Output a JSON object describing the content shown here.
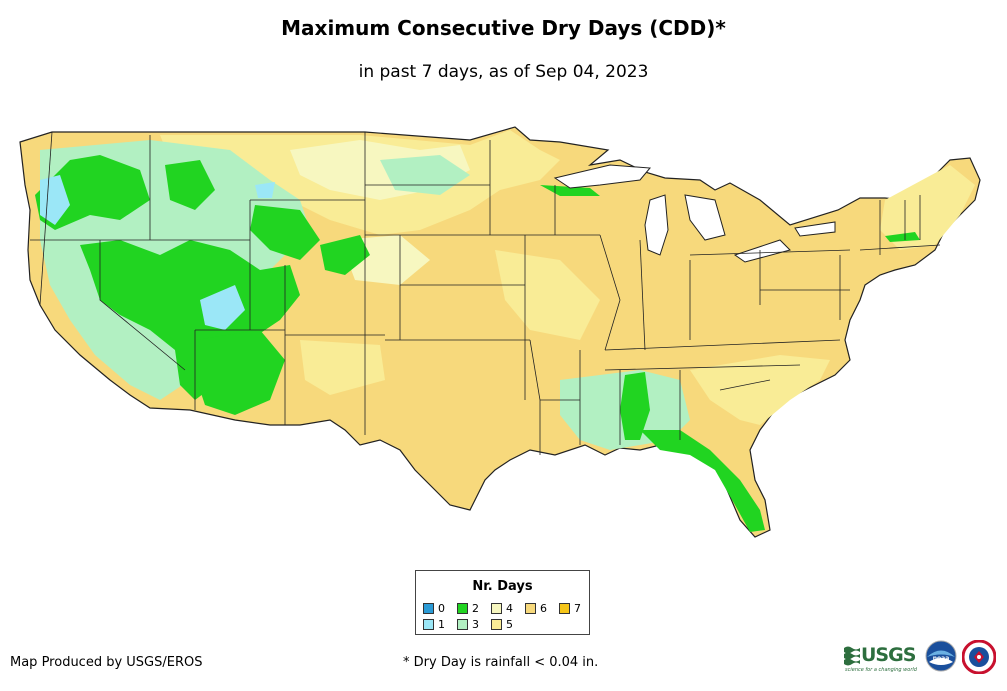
{
  "header": {
    "title": "Maximum Consecutive Dry Days (CDD)*",
    "subtitle": "in past 7 days, as of Sep 04, 2023"
  },
  "legend": {
    "title": "Nr. Days",
    "items": [
      {
        "label": "0",
        "color": "#2b9bd6"
      },
      {
        "label": "1",
        "color": "#9be7f7"
      },
      {
        "label": "2",
        "color": "#21d421"
      },
      {
        "label": "3",
        "color": "#b2f0c2"
      },
      {
        "label": "4",
        "color": "#f7f7c0"
      },
      {
        "label": "5",
        "color": "#f9ec96"
      },
      {
        "label": "6",
        "color": "#f7d97c"
      },
      {
        "label": "7",
        "color": "#f5c518"
      }
    ]
  },
  "footer": {
    "credit": "Map Produced by USGS/EROS",
    "footnote": "* Dry Day is rainfall < 0.04 in."
  },
  "logos": {
    "usgs": "USGS",
    "usgs_tagline": "science for a changing world",
    "noaa": "noaa"
  },
  "icons": [
    "usgs-logo-icon",
    "noaa-logo-icon",
    "nws-logo-icon"
  ]
}
